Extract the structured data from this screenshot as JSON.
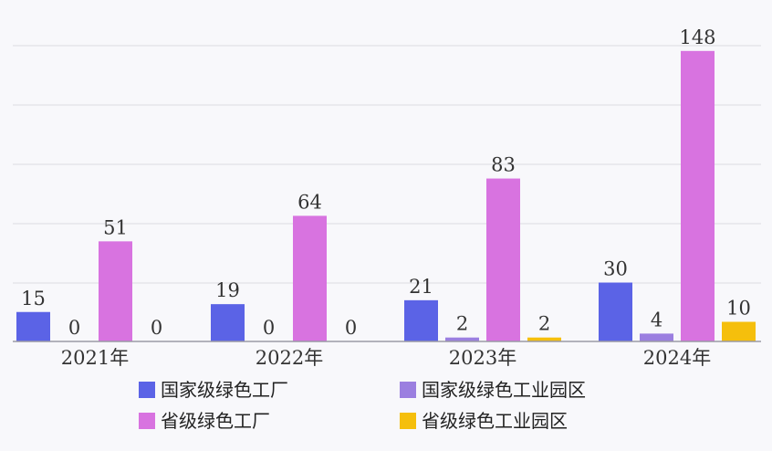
{
  "chart_data": {
    "type": "bar",
    "title": "",
    "xlabel": "",
    "ylabel": "",
    "categories": [
      "2021年",
      "2022年",
      "2023年",
      "2024年"
    ],
    "series": [
      {
        "name": "国家级绿色工厂",
        "color": "#5b63e6",
        "values": [
          15,
          19,
          21,
          30
        ]
      },
      {
        "name": "国家级绿色工业园区",
        "color": "#9b7fe0",
        "values": [
          0,
          0,
          2,
          4
        ]
      },
      {
        "name": "省级绿色工厂",
        "color": "#d873e0",
        "values": [
          51,
          64,
          83,
          148
        ]
      },
      {
        "name": "省级绿色工业园区",
        "color": "#f5bf0c",
        "values": [
          0,
          0,
          2,
          10
        ]
      }
    ],
    "ylim": [
      0,
      160
    ],
    "grid": true,
    "legend": "bottom",
    "data_labels": true
  }
}
